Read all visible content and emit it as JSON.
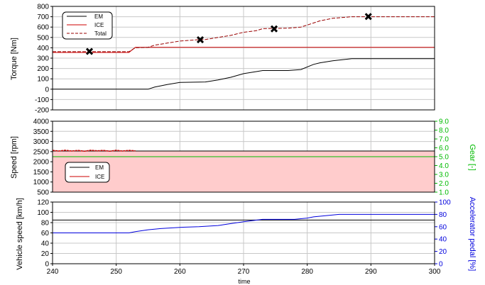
{
  "colors": {
    "em": "#000000",
    "ice": "#cc0000",
    "total": "#990000",
    "gear": "#00bb00",
    "pedal": "#0000dd",
    "speed_fill": "#ffcccc",
    "grid": "#c8c8c8",
    "marker": "#000000"
  },
  "chart_data": [
    {
      "type": "line",
      "xlim": [
        240,
        300
      ],
      "ylim": [
        -200,
        800
      ],
      "yticks": [
        -200,
        -100,
        0,
        100,
        200,
        300,
        400,
        500,
        600,
        700,
        800
      ],
      "ylabel": "Torque [Nm]",
      "legend": {
        "placement": "top-left",
        "entries": [
          "EM",
          "ICE",
          "Total"
        ]
      },
      "grid": true,
      "series": [
        {
          "name": "EM",
          "x": [
            240,
            255,
            256,
            258,
            260,
            264,
            266,
            268,
            270,
            272,
            273,
            277,
            279,
            281,
            282,
            284,
            287,
            300
          ],
          "values": [
            0,
            0,
            20,
            45,
            65,
            70,
            90,
            115,
            150,
            170,
            180,
            180,
            190,
            240,
            255,
            275,
            295,
            295
          ]
        },
        {
          "name": "ICE",
          "x": [
            240,
            252,
            253,
            300
          ],
          "values": [
            355,
            355,
            405,
            405
          ]
        },
        {
          "name": "Total",
          "x": [
            240,
            252,
            253,
            255,
            256,
            258,
            260,
            263,
            264,
            266,
            268,
            270,
            272,
            273,
            277,
            279,
            281,
            282,
            284,
            287,
            300
          ],
          "values": [
            362,
            362,
            400,
            405,
            425,
            445,
            465,
            478,
            480,
            500,
            520,
            550,
            565,
            585,
            590,
            600,
            640,
            660,
            685,
            700,
            700
          ]
        }
      ],
      "markers": [
        {
          "x": 245.8,
          "y": 365
        },
        {
          "x": 263.2,
          "y": 478
        },
        {
          "x": 274.8,
          "y": 583
        },
        {
          "x": 289.6,
          "y": 702
        }
      ]
    },
    {
      "type": "line",
      "xlim": [
        240,
        300
      ],
      "ylim": [
        500,
        4000
      ],
      "yticks": [
        500,
        1000,
        1500,
        2000,
        2500,
        3000,
        3500,
        4000
      ],
      "ylabel": "Speed [rpm]",
      "y2lim": [
        1.0,
        9.0
      ],
      "y2ticks": [
        "1.0",
        "2.0",
        "3.0",
        "4.0",
        "5.0",
        "6.0",
        "7.0",
        "8.0",
        "9.0"
      ],
      "y2label": "Gear [-]",
      "legend": {
        "placement": "center-left",
        "entries": [
          "EM",
          "ICE"
        ]
      },
      "grid": true,
      "series": [
        {
          "name": "EM",
          "x": [
            240,
            300
          ],
          "values": [
            2530,
            2530
          ]
        },
        {
          "name": "ICE",
          "x": [
            240,
            241,
            242,
            243,
            244,
            245,
            246,
            247,
            248,
            249,
            250,
            251,
            252,
            253
          ],
          "values": [
            2560,
            2530,
            2570,
            2530,
            2560,
            2520,
            2570,
            2540,
            2560,
            2520,
            2570,
            2530,
            2560,
            2540
          ]
        },
        {
          "name": "Gear",
          "axis": "y2",
          "x": [
            240,
            300
          ],
          "values": [
            5.0,
            5.0
          ]
        }
      ]
    },
    {
      "type": "line",
      "xlim": [
        240,
        300
      ],
      "ylim": [
        0,
        120
      ],
      "yticks": [
        0,
        20,
        40,
        60,
        80,
        100,
        120
      ],
      "ylabel": "Vehicle speed [km/h]",
      "y2lim": [
        0,
        100
      ],
      "y2ticks": [
        0,
        20,
        40,
        60,
        80,
        100
      ],
      "y2label": "Accelerator pedal [%]",
      "xticks": [
        240,
        250,
        260,
        270,
        280,
        290,
        300
      ],
      "xlabel": "time",
      "grid": true,
      "series": [
        {
          "name": "Vehicle speed",
          "x": [
            240,
            300
          ],
          "values": [
            85,
            85
          ]
        },
        {
          "name": "Accelerator pedal",
          "axis": "y2",
          "x": [
            240,
            252,
            253,
            255,
            257,
            260,
            263,
            266,
            268,
            270,
            273,
            278,
            280,
            281,
            283,
            285,
            300
          ],
          "values": [
            50,
            50,
            52,
            55,
            57,
            59,
            60,
            62,
            65,
            68,
            72,
            72,
            74,
            76,
            78,
            80,
            80
          ]
        }
      ]
    }
  ]
}
